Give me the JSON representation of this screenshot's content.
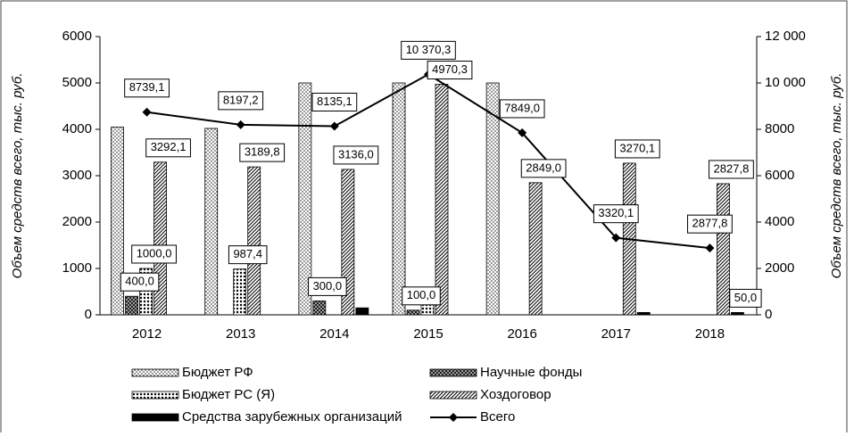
{
  "chart_data": {
    "type": "bar",
    "y_label": "Объем средств всего, тыс. руб.",
    "y2_label": "Объем средств всего, тыс. руб.",
    "categories": [
      "2012",
      "2013",
      "2014",
      "2015",
      "2016",
      "2017",
      "2018"
    ],
    "ylim": [
      0,
      6000
    ],
    "yticks": [
      0,
      1000,
      2000,
      3000,
      4000,
      5000,
      6000
    ],
    "y2lim": [
      0,
      12000
    ],
    "y2ticks": [
      0,
      2000,
      4000,
      6000,
      8000,
      {
        "value": 10000,
        "label": "10 000"
      },
      {
        "value": 12000,
        "label": "12 000"
      }
    ],
    "series": [
      {
        "name": "Бюджет РФ",
        "color": "#000000",
        "pattern": "dots",
        "values": [
          4047,
          4020,
          5000,
          5000,
          5000,
          null,
          null
        ],
        "value_labels": [
          null,
          null,
          null,
          null,
          null,
          null,
          null
        ]
      },
      {
        "name": "Научные фонды",
        "color": "#000000",
        "pattern": "crosshatch",
        "values": [
          400,
          null,
          300,
          100,
          null,
          null,
          null
        ],
        "value_labels": [
          "400,0",
          null,
          "300,0",
          "100,0",
          null,
          null,
          null
        ]
      },
      {
        "name": "Бюджет РС (Я)",
        "color": "#000000",
        "pattern": "wave",
        "values": [
          1000,
          987.4,
          null,
          300,
          null,
          null,
          null
        ],
        "value_labels": [
          "1000,0",
          "987,4",
          null,
          null,
          null,
          null,
          null
        ]
      },
      {
        "name": "Хоздоговор",
        "color": "#000000",
        "pattern": "diagonal",
        "values": [
          3292.1,
          3189.8,
          3136,
          4970.3,
          2849,
          3270.1,
          2827.8
        ],
        "value_labels": [
          "3292,1",
          "3189,8",
          "3136,0",
          "4970,3",
          "2849,0",
          "3270,1",
          "2827,8"
        ]
      },
      {
        "name": "Средства зарубежных организаций",
        "color": "#000000",
        "pattern": "solid",
        "values": [
          null,
          null,
          150,
          null,
          null,
          50,
          50
        ],
        "value_labels": [
          null,
          null,
          null,
          null,
          null,
          null,
          "50,0"
        ]
      },
      {
        "name": "Всего",
        "color": "#000000",
        "type": "line",
        "axis": "y2",
        "values": [
          8739.1,
          8197.2,
          8135.1,
          10370.3,
          7849,
          3320.1,
          2877.8
        ],
        "value_labels": [
          "8739,1",
          "8197,2",
          "8135,1",
          "10 370,3",
          "7849,0",
          "3320,1",
          "2877,8"
        ]
      }
    ]
  }
}
